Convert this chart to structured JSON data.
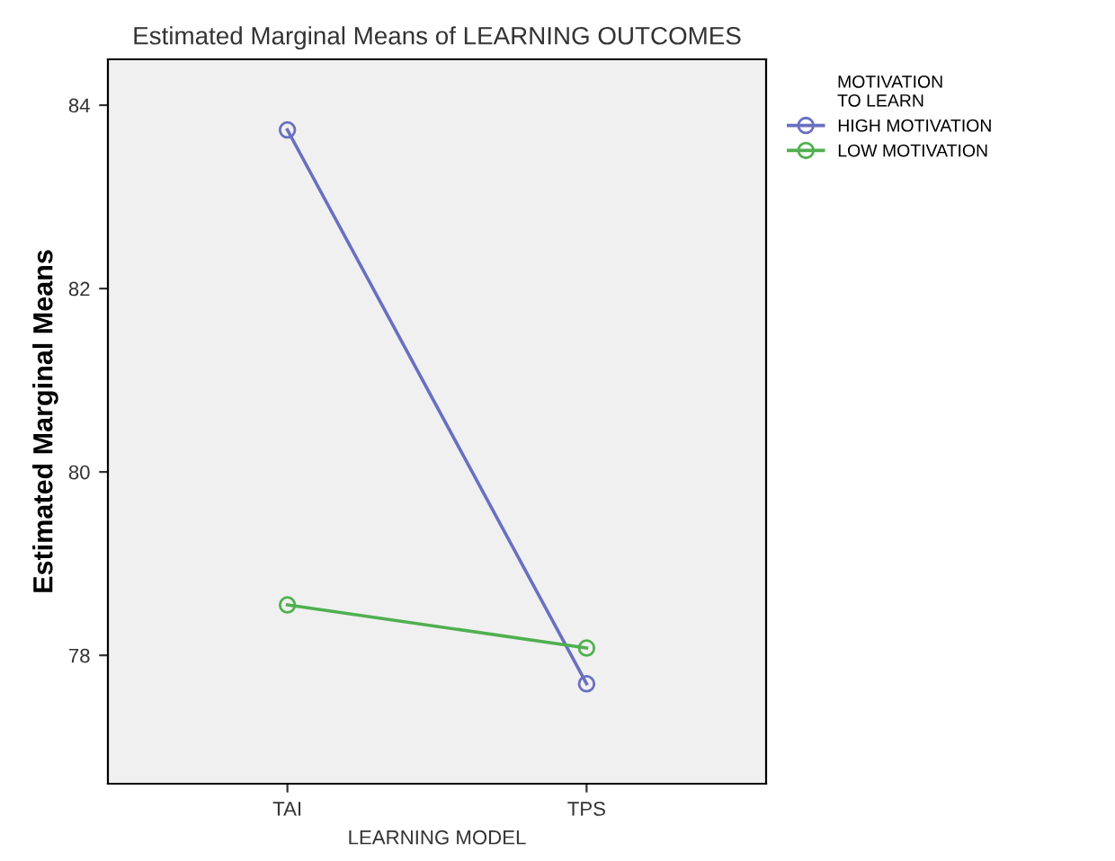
{
  "chart_data": {
    "type": "line",
    "title": "Estimated Marginal Means of LEARNING OUTCOMES",
    "xlabel": "LEARNING MODEL",
    "ylabel": "Estimated Marginal Means",
    "legend_title": "MOTIVATION\nTO LEARN",
    "categories": [
      "TAI",
      "TPS"
    ],
    "series": [
      {
        "name": "HIGH MOTIVATION",
        "color": "#6a6fc0",
        "values": [
          83.73,
          77.69
        ]
      },
      {
        "name": "LOW MOTIVATION",
        "color": "#4fb04f",
        "values": [
          78.55,
          78.08
        ]
      }
    ],
    "ylim": [
      76.6,
      84.5
    ],
    "yticks": [
      78,
      80,
      82,
      84
    ],
    "grid": false,
    "legend": "right",
    "marker": "circle",
    "line_style": "solid"
  }
}
